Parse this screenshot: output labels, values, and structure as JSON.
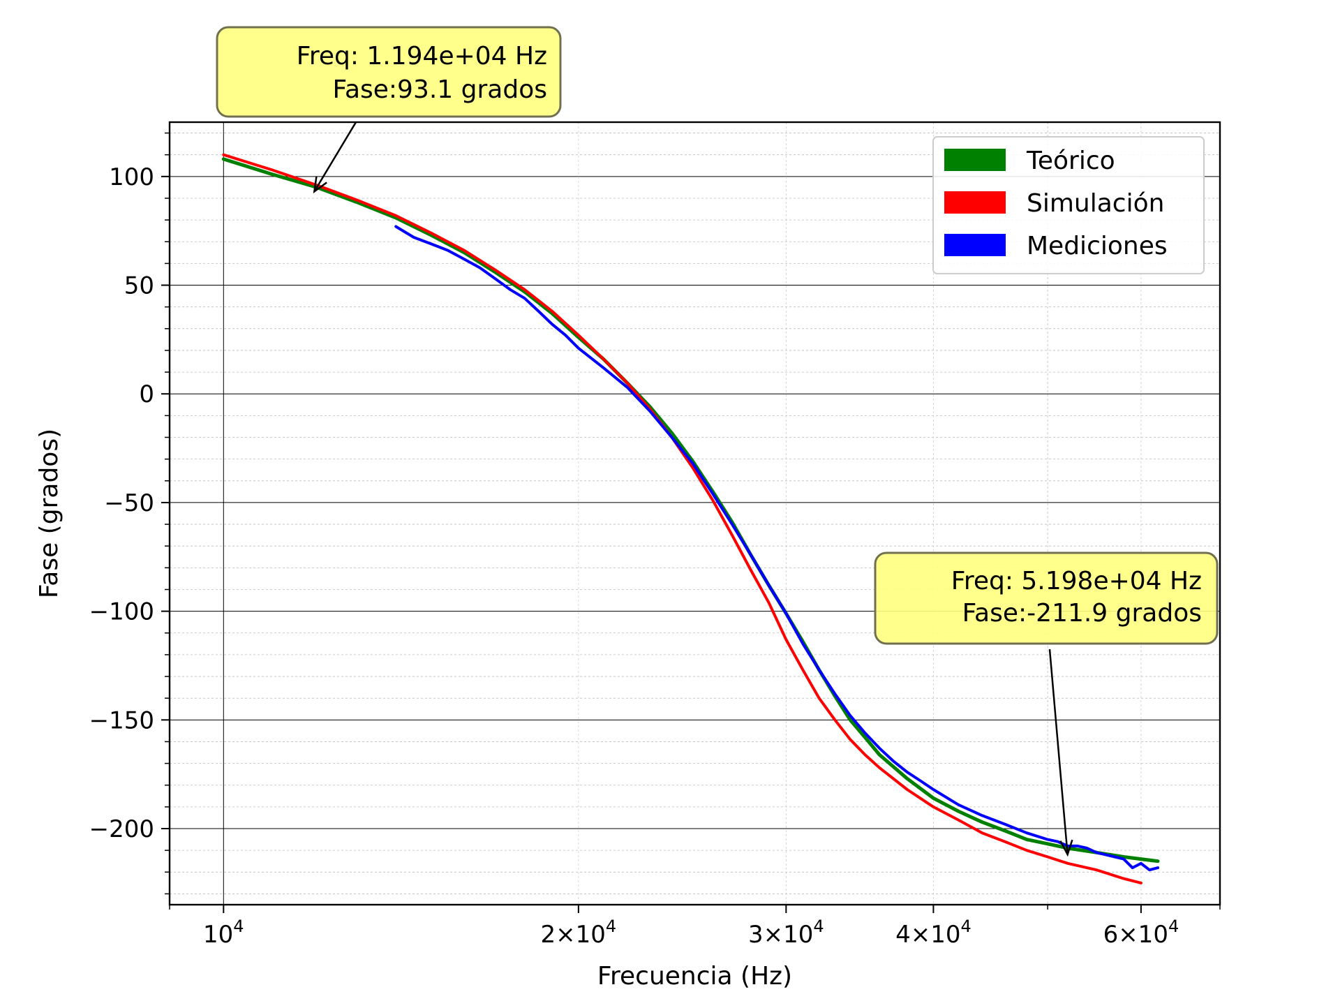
{
  "chart_data": {
    "type": "line",
    "title": "",
    "xlabel": "Frecuencia (Hz)",
    "ylabel": "Fase (grados)",
    "x_scale": "log",
    "xlim": [
      9000,
      70000
    ],
    "ylim": [
      -235,
      125
    ],
    "grid": true,
    "legend_position": "top-right",
    "x_ticks": [
      {
        "value": 10000,
        "base": "10",
        "exp": "4",
        "mult": ""
      },
      {
        "value": 20000,
        "base": "10",
        "exp": "4",
        "mult": "2×"
      },
      {
        "value": 30000,
        "base": "10",
        "exp": "4",
        "mult": "3×"
      },
      {
        "value": 40000,
        "base": "10",
        "exp": "4",
        "mult": "4×"
      },
      {
        "value": 60000,
        "base": "10",
        "exp": "4",
        "mult": "6×"
      }
    ],
    "y_ticks": [
      {
        "value": 100,
        "label": "100"
      },
      {
        "value": 50,
        "label": "50"
      },
      {
        "value": 0,
        "label": "0"
      },
      {
        "value": -50,
        "label": "−50"
      },
      {
        "value": -100,
        "label": "−100"
      },
      {
        "value": -150,
        "label": "−150"
      },
      {
        "value": -200,
        "label": "−200"
      }
    ],
    "series": [
      {
        "name": "Teórico",
        "color": "#008000",
        "x": [
          10000,
          11000,
          12000,
          13000,
          14000,
          15000,
          16000,
          17000,
          18000,
          19000,
          20000,
          21000,
          22000,
          23000,
          24000,
          25000,
          26000,
          27000,
          28000,
          29000,
          30000,
          31000,
          32000,
          33000,
          34000,
          35000,
          36000,
          38000,
          40000,
          42000,
          44000,
          46000,
          48000,
          50000,
          52000,
          55000,
          58000,
          62000
        ],
        "y": [
          108,
          101,
          95,
          88,
          81,
          73,
          65,
          56,
          47,
          37,
          26,
          16,
          5,
          -6,
          -18,
          -31,
          -45,
          -59,
          -74,
          -88,
          -101,
          -114,
          -127,
          -139,
          -150,
          -158,
          -166,
          -177,
          -186,
          -192,
          -197,
          -201,
          -205,
          -207,
          -209,
          -211,
          -213,
          -215
        ]
      },
      {
        "name": "Simulación",
        "color": "#ff0000",
        "x": [
          10000,
          11000,
          12000,
          13000,
          14000,
          15000,
          16000,
          17000,
          18000,
          19000,
          20000,
          21000,
          22000,
          23000,
          24000,
          25000,
          26000,
          27000,
          28000,
          29000,
          30000,
          31000,
          32000,
          33000,
          34000,
          35000,
          36000,
          38000,
          40000,
          42000,
          44000,
          46000,
          48000,
          50000,
          52000,
          55000,
          58000,
          60000
        ],
        "y": [
          110,
          103,
          96,
          89,
          82,
          74,
          66,
          57,
          48,
          38,
          27,
          16,
          5,
          -7,
          -20,
          -34,
          -49,
          -65,
          -81,
          -96,
          -113,
          -127,
          -140,
          -150,
          -159,
          -166,
          -172,
          -182,
          -190,
          -196,
          -202,
          -206,
          -210,
          -213,
          -216,
          -219,
          -223,
          -225
        ]
      },
      {
        "name": "Mediciones",
        "color": "#0000ff",
        "x": [
          14000,
          14500,
          15000,
          15500,
          16000,
          16500,
          17000,
          17500,
          18000,
          18500,
          19000,
          19500,
          20000,
          21000,
          22000,
          23000,
          24000,
          25000,
          26000,
          27000,
          28000,
          29000,
          30000,
          31000,
          32000,
          33000,
          34000,
          35000,
          36000,
          37000,
          38000,
          39000,
          40000,
          42000,
          44000,
          46000,
          48000,
          50000,
          51000,
          52000,
          53000,
          54000,
          55000,
          56000,
          57000,
          58000,
          59000,
          60000,
          61000,
          62000
        ],
        "y": [
          77,
          72,
          69,
          66,
          62,
          58,
          53,
          48,
          44,
          38,
          32,
          27,
          21,
          12,
          3,
          -8,
          -20,
          -32,
          -46,
          -60,
          -74,
          -88,
          -101,
          -115,
          -127,
          -138,
          -148,
          -156,
          -163,
          -169,
          -174,
          -178,
          -182,
          -189,
          -194,
          -198,
          -202,
          -205,
          -206,
          -208,
          -208,
          -209,
          -211,
          -212,
          -213,
          -214,
          -218,
          -216,
          -219,
          -218
        ]
      }
    ],
    "annotations": [
      {
        "line1": "Freq: 1.194e+04  Hz",
        "line2": "Fase:93.1 grados",
        "x": 11940,
        "y": 93.1
      },
      {
        "line1": "Freq: 5.198e+04  Hz",
        "line2": "Fase:-211.9 grados",
        "x": 51980,
        "y": -211.9
      }
    ],
    "annotation_box_color": "#ffff80"
  }
}
